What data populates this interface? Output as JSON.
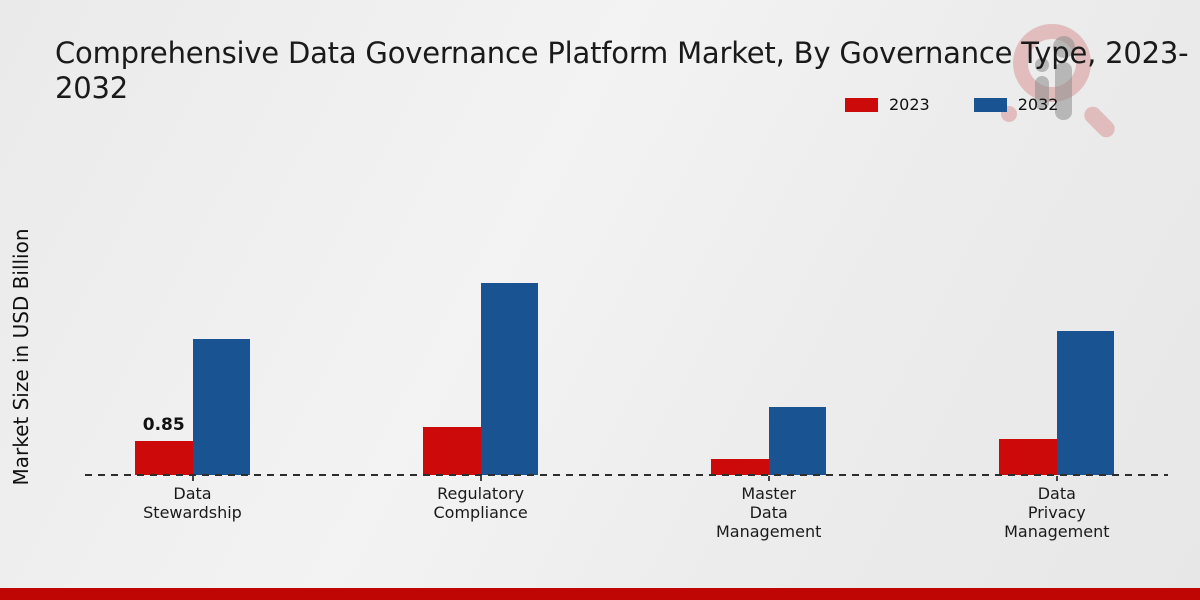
{
  "title": {
    "line1": "Comprehensive Data Governance Platform Market, By Governance Type, 2023-",
    "line2": "2032"
  },
  "y_axis_label": "Market Size in USD Billion",
  "legend": [
    {
      "label": "2023",
      "color": "#cc0a0a"
    },
    {
      "label": "2032",
      "color": "#1a5391"
    }
  ],
  "watermark_icon": "magnifier-bar-chart-logo",
  "footer": {
    "band_color": "#c00505"
  },
  "chart_data": {
    "type": "bar",
    "title": "Comprehensive Data Governance Platform Market, By Governance Type, 2023-2032",
    "xlabel": "",
    "ylabel": "Market Size in USD Billion",
    "categories": [
      "Data Stewardship",
      "Regulatory Compliance",
      "Master Data Management",
      "Data Privacy Management"
    ],
    "category_display": [
      "Data\nStewardship",
      "Regulatory\nCompliance",
      "Master\nData\nManagement",
      "Data\nPrivacy\nManagement"
    ],
    "series": [
      {
        "name": "2023",
        "color": "#cc0a0a",
        "values": [
          0.85,
          1.2,
          0.4,
          0.9
        ]
      },
      {
        "name": "2032",
        "color": "#1a5391",
        "values": [
          3.4,
          4.8,
          1.7,
          3.6
        ]
      }
    ],
    "annotations": [
      {
        "series": "2023",
        "category": "Data Stewardship",
        "text": "0.85"
      }
    ],
    "ylim": [
      0,
      5.5
    ],
    "grid": false,
    "axis_ticks_visible": false,
    "baseline_style": "dashed",
    "legend_position": "top-right"
  }
}
